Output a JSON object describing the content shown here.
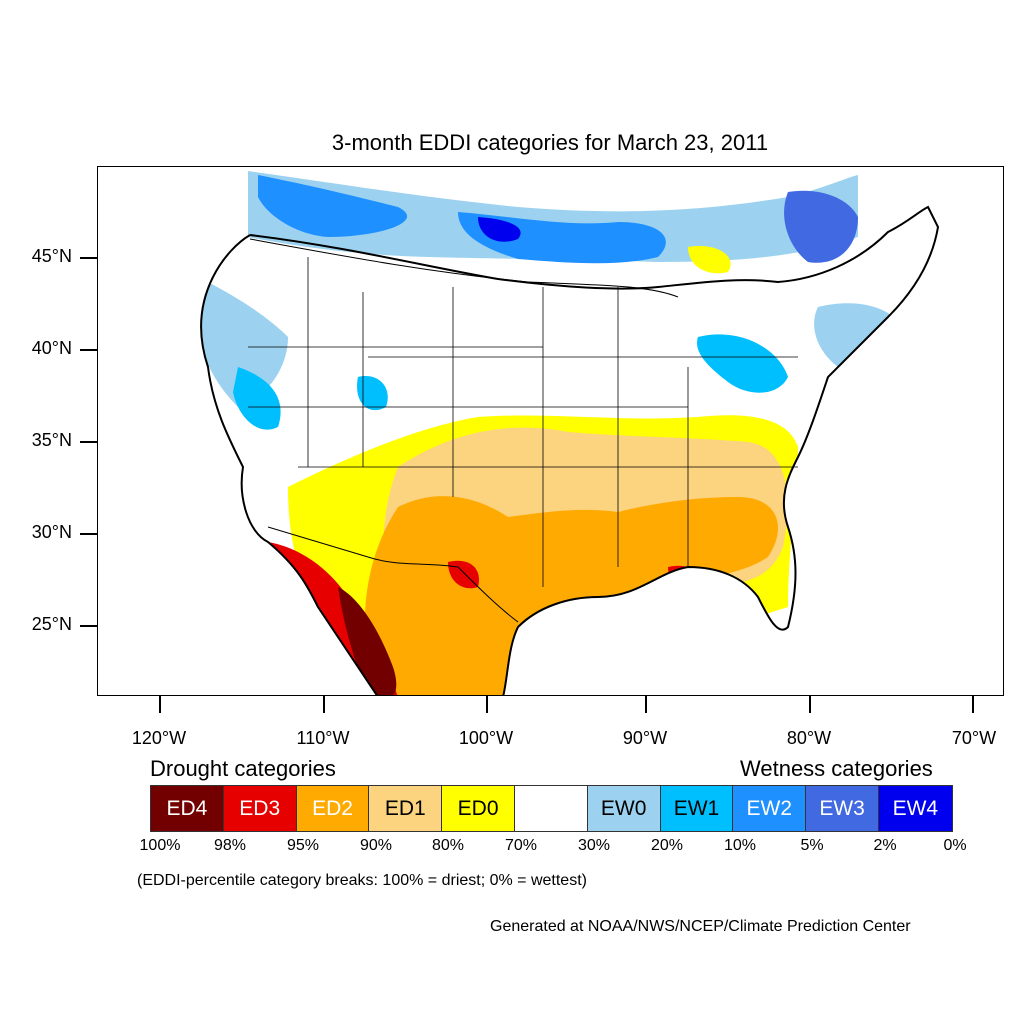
{
  "title": "3-month EDDI categories for March 23, 2011",
  "lat_labels": [
    "45°N",
    "40°N",
    "35°N",
    "30°N",
    "25°N"
  ],
  "lon_labels": [
    "120°W",
    "110°W",
    "100°W",
    "90°W",
    "80°W",
    "70°W"
  ],
  "legend": {
    "drought_heading": "Drought categories",
    "wetness_heading": "Wetness categories",
    "categories": [
      {
        "label": "ED4",
        "color": "#730000",
        "text_color": "#ffffff"
      },
      {
        "label": "ED3",
        "color": "#e60000",
        "text_color": "#ffffff"
      },
      {
        "label": "ED2",
        "color": "#ffaa00",
        "text_color": "#ffffff"
      },
      {
        "label": "ED1",
        "color": "#fcd37f",
        "text_color": "#000000"
      },
      {
        "label": "ED0",
        "color": "#ffff00",
        "text_color": "#000000"
      },
      {
        "label": "",
        "color": "#ffffff",
        "text_color": "#000000"
      },
      {
        "label": "EW0",
        "color": "#9cd2f0",
        "text_color": "#000000"
      },
      {
        "label": "EW1",
        "color": "#00bfff",
        "text_color": "#000000"
      },
      {
        "label": "EW2",
        "color": "#1e90ff",
        "text_color": "#ffffff"
      },
      {
        "label": "EW3",
        "color": "#4169e1",
        "text_color": "#ffffff"
      },
      {
        "label": "EW4",
        "color": "#0000ee",
        "text_color": "#ffffff"
      }
    ],
    "percent_breaks": [
      "100%",
      "98%",
      "95%",
      "90%",
      "80%",
      "70%",
      "30%",
      "20%",
      "10%",
      "5%",
      "2%",
      "0%"
    ]
  },
  "note": "(EDDI-percentile category breaks: 100% = driest; 0% = wettest)",
  "credit": "Generated at NOAA/NWS/NCEP/Climate Prediction Center"
}
